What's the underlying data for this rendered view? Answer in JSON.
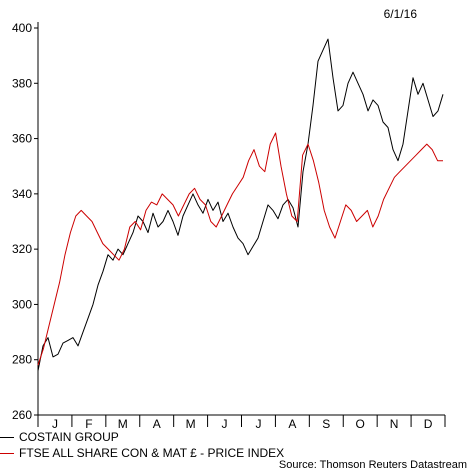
{
  "chart_data": {
    "type": "line",
    "date_label": "6/1/16",
    "source": "Source: Thomson Reuters Datastream",
    "ylim": [
      260,
      400
    ],
    "yticks": [
      260,
      280,
      300,
      320,
      340,
      360,
      380,
      400
    ],
    "months": [
      "J",
      "F",
      "M",
      "A",
      "M",
      "J",
      "J",
      "A",
      "S",
      "O",
      "N",
      "D"
    ],
    "series": [
      {
        "name": "COSTAIN GROUP",
        "color": "#000000",
        "values": [
          276,
          285,
          288,
          281,
          282,
          286,
          287,
          288,
          285,
          290,
          295,
          300,
          307,
          312,
          318,
          316,
          320,
          318,
          322,
          326,
          332,
          330,
          326,
          333,
          328,
          330,
          334,
          330,
          325,
          332,
          336,
          340,
          336,
          333,
          338,
          334,
          337,
          330,
          333,
          328,
          324,
          322,
          318,
          321,
          324,
          330,
          336,
          334,
          331,
          336,
          338,
          335,
          328,
          348,
          358,
          372,
          388,
          392,
          396,
          382,
          370,
          372,
          380,
          384,
          380,
          376,
          370,
          374,
          372,
          366,
          364,
          356,
          352,
          358,
          370,
          382,
          376,
          380,
          374,
          368,
          370,
          376
        ]
      },
      {
        "name": "FTSE ALL SHARE CON & MAT £ - PRICE INDEX",
        "color": "#cc0000",
        "values": [
          278,
          284,
          292,
          300,
          308,
          318,
          326,
          332,
          334,
          332,
          330,
          326,
          322,
          320,
          318,
          316,
          320,
          328,
          330,
          327,
          334,
          337,
          336,
          340,
          338,
          336,
          332,
          336,
          340,
          342,
          338,
          336,
          330,
          328,
          332,
          336,
          340,
          343,
          346,
          352,
          356,
          350,
          348,
          358,
          362,
          350,
          340,
          332,
          330,
          354,
          358,
          352,
          344,
          334,
          328,
          324,
          330,
          336,
          334,
          330,
          332,
          334,
          328,
          332,
          338,
          342,
          346,
          348,
          350,
          352,
          354,
          356,
          358,
          356,
          352,
          352
        ]
      }
    ]
  }
}
